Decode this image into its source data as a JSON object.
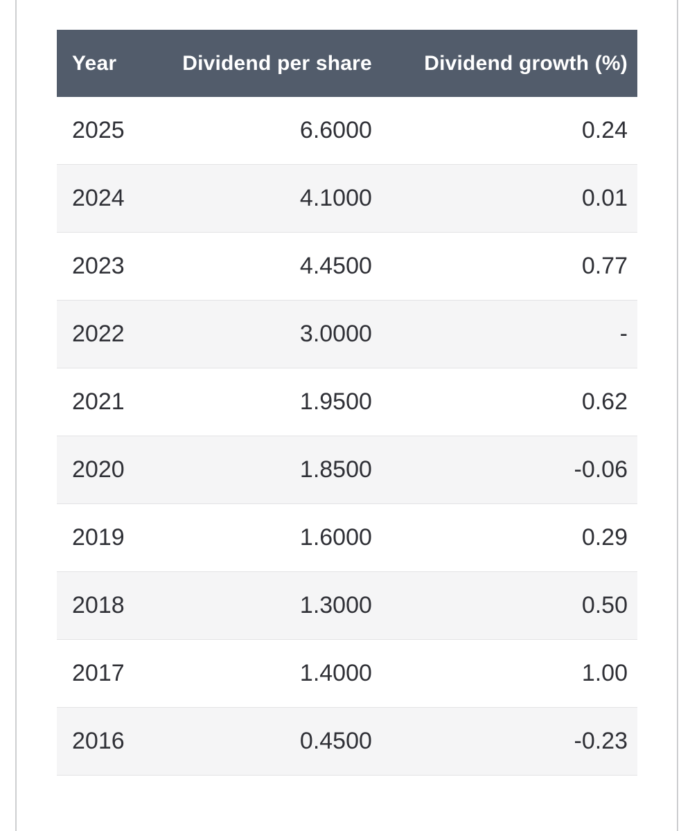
{
  "colors": {
    "header_bg": "#525c6b",
    "header_text": "#ffffff",
    "row_bg": "#ffffff",
    "row_alt_bg": "#f5f5f6",
    "row_border": "#e3e3e5",
    "body_text": "#2f3036",
    "page_line": "#cdced0"
  },
  "table": {
    "columns": [
      "Year",
      "Dividend per share",
      "Dividend growth (%)"
    ],
    "rows": [
      {
        "year": "2025",
        "dps": "6.6000",
        "growth": "0.24"
      },
      {
        "year": "2024",
        "dps": "4.1000",
        "growth": "0.01"
      },
      {
        "year": "2023",
        "dps": "4.4500",
        "growth": "0.77"
      },
      {
        "year": "2022",
        "dps": "3.0000",
        "growth": "-"
      },
      {
        "year": "2021",
        "dps": "1.9500",
        "growth": "0.62"
      },
      {
        "year": "2020",
        "dps": "1.8500",
        "growth": "-0.06"
      },
      {
        "year": "2019",
        "dps": "1.6000",
        "growth": "0.29"
      },
      {
        "year": "2018",
        "dps": "1.3000",
        "growth": "0.50"
      },
      {
        "year": "2017",
        "dps": "1.4000",
        "growth": "1.00"
      },
      {
        "year": "2016",
        "dps": "0.4500",
        "growth": "-0.23"
      }
    ]
  },
  "chart_data": {
    "type": "table",
    "columns": [
      "Year",
      "Dividend per share",
      "Dividend growth (%)"
    ],
    "rows": [
      [
        "2025",
        6.6,
        0.24
      ],
      [
        "2024",
        4.1,
        0.01
      ],
      [
        "2023",
        4.45,
        0.77
      ],
      [
        "2022",
        3.0,
        null
      ],
      [
        "2021",
        1.95,
        0.62
      ],
      [
        "2020",
        1.85,
        -0.06
      ],
      [
        "2019",
        1.6,
        0.29
      ],
      [
        "2018",
        1.3,
        0.5
      ],
      [
        "2017",
        1.4,
        1.0
      ],
      [
        "2016",
        0.45,
        -0.23
      ]
    ]
  }
}
